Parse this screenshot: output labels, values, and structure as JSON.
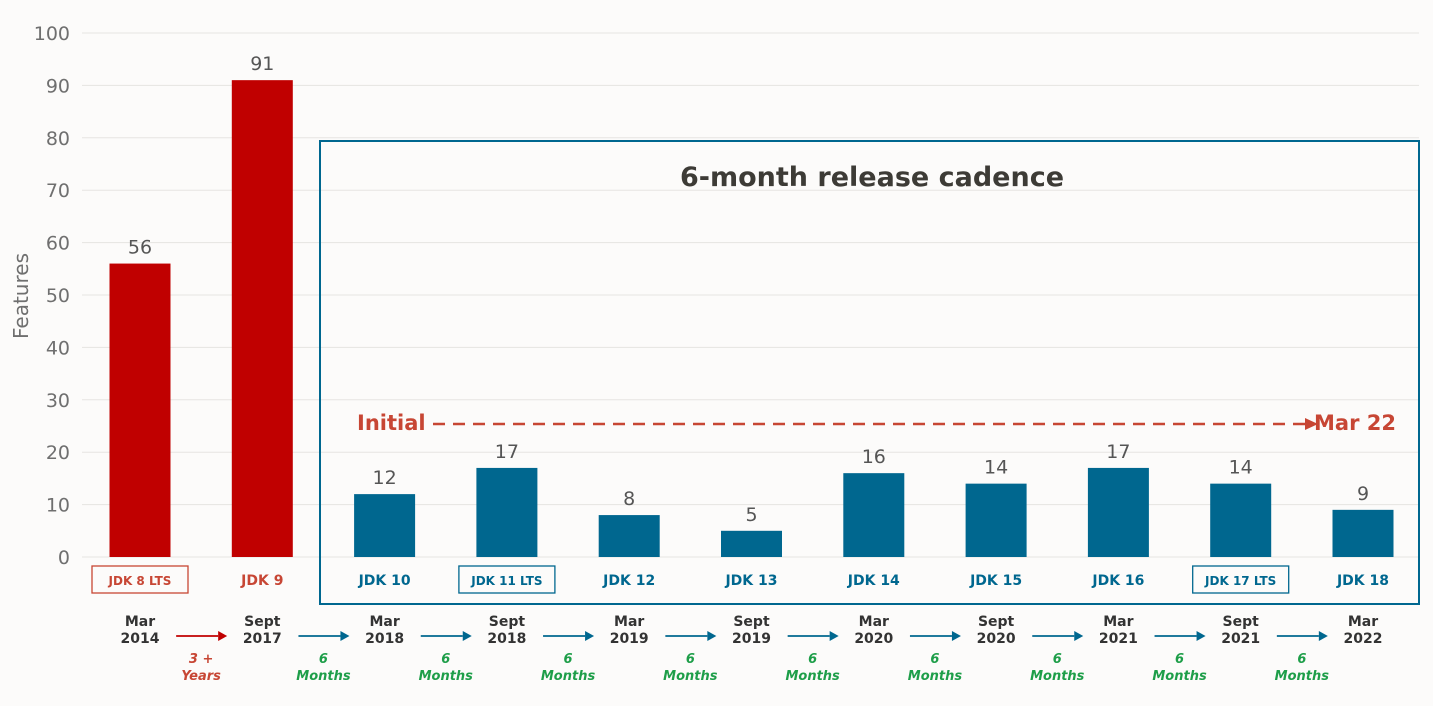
{
  "chart_data": {
    "type": "bar",
    "ylabel": "Features",
    "ylim": [
      0,
      100
    ],
    "yticks": [
      0,
      10,
      20,
      30,
      40,
      50,
      60,
      70,
      80,
      90,
      100
    ],
    "grid": true,
    "categories": [
      "JDK 8 LTS",
      "JDK 9",
      "JDK 10",
      "JDK 11 LTS",
      "JDK 12",
      "JDK 13",
      "JDK 14",
      "JDK 15",
      "JDK 16",
      "JDK 17 LTS",
      "JDK 18"
    ],
    "values": [
      56,
      91,
      12,
      17,
      8,
      5,
      16,
      14,
      17,
      14,
      9
    ],
    "dates": [
      [
        "Mar",
        "2014"
      ],
      [
        "Sept",
        "2017"
      ],
      [
        "Mar",
        "2018"
      ],
      [
        "Sept",
        "2018"
      ],
      [
        "Mar",
        "2019"
      ],
      [
        "Sept",
        "2019"
      ],
      [
        "Mar",
        "2020"
      ],
      [
        "Sept",
        "2020"
      ],
      [
        "Mar",
        "2021"
      ],
      [
        "Sept",
        "2021"
      ],
      [
        "Mar",
        "2022"
      ]
    ],
    "intervals": [
      [
        "3 +",
        "Years"
      ],
      [
        "6",
        "Months"
      ],
      [
        "6",
        "Months"
      ],
      [
        "6",
        "Months"
      ],
      [
        "6",
        "Months"
      ],
      [
        "6",
        "Months"
      ],
      [
        "6",
        "Months"
      ],
      [
        "6",
        "Months"
      ],
      [
        "6",
        "Months"
      ],
      [
        "6",
        "Months"
      ]
    ],
    "lts": [
      true,
      false,
      false,
      true,
      false,
      false,
      false,
      false,
      false,
      true,
      false
    ],
    "bar_colors": [
      "red",
      "red",
      "teal",
      "teal",
      "teal",
      "teal",
      "teal",
      "teal",
      "teal",
      "teal",
      "teal"
    ],
    "annotations": {
      "cadence_title": "6-month release cadence",
      "range_start": "Initial",
      "range_end": "Mar 22"
    }
  },
  "colors": {
    "red": "#c00000",
    "teal": "#00678f",
    "annotation_red": "#c74634",
    "green": "#1e9e49",
    "dark_text": "#3d3b36",
    "axis_text": "#6f6f6f",
    "grid": "#e6e4e1",
    "date_text": "#333333"
  }
}
